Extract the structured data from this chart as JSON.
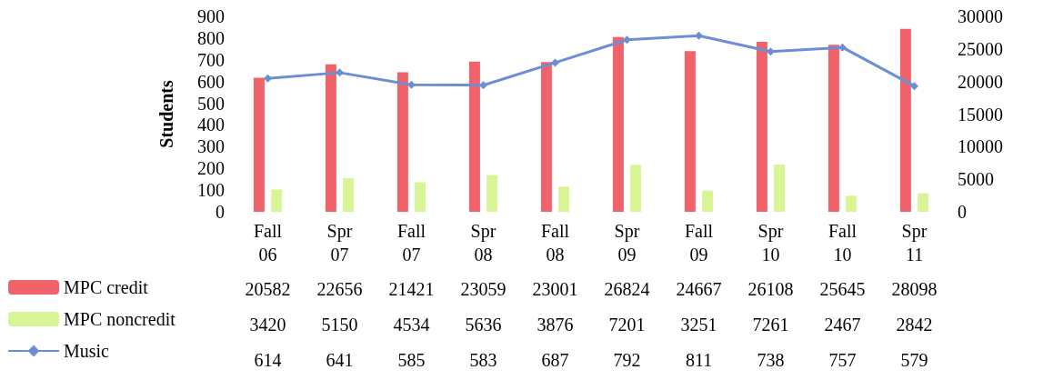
{
  "chart_data": {
    "type": "bar",
    "ylabel": "Students",
    "categories": [
      "Fall 06",
      "Spr 07",
      "Fall 07",
      "Spr 08",
      "Fall 08",
      "Spr 09",
      "Fall 09",
      "Spr 10",
      "Fall 10",
      "Spr 11"
    ],
    "series": [
      {
        "name": "MPC credit",
        "color": "#f0636b",
        "axis": "y2",
        "values": [
          20582,
          22656,
          21421,
          23059,
          23001,
          26824,
          24667,
          26108,
          25645,
          28098
        ]
      },
      {
        "name": "MPC noncredit",
        "color": "#d8f596",
        "axis": "y2",
        "values": [
          3420,
          5150,
          4534,
          5636,
          3876,
          7201,
          3251,
          7261,
          2467,
          2842
        ]
      },
      {
        "name": "Music",
        "type": "line",
        "color": "#6c8fd4",
        "marker": "diamond",
        "values": [
          614,
          641,
          585,
          583,
          687,
          792,
          811,
          738,
          757,
          579
        ]
      }
    ],
    "ylim": [
      0,
      900
    ],
    "yticks": [
      0,
      100,
      200,
      300,
      400,
      500,
      600,
      700,
      800,
      900
    ],
    "y2lim": [
      0,
      30000
    ],
    "y2ticks": [
      0,
      5000,
      10000,
      15000,
      20000,
      25000,
      30000
    ],
    "grid": false,
    "legend": "bottom left",
    "data_labels": true
  }
}
